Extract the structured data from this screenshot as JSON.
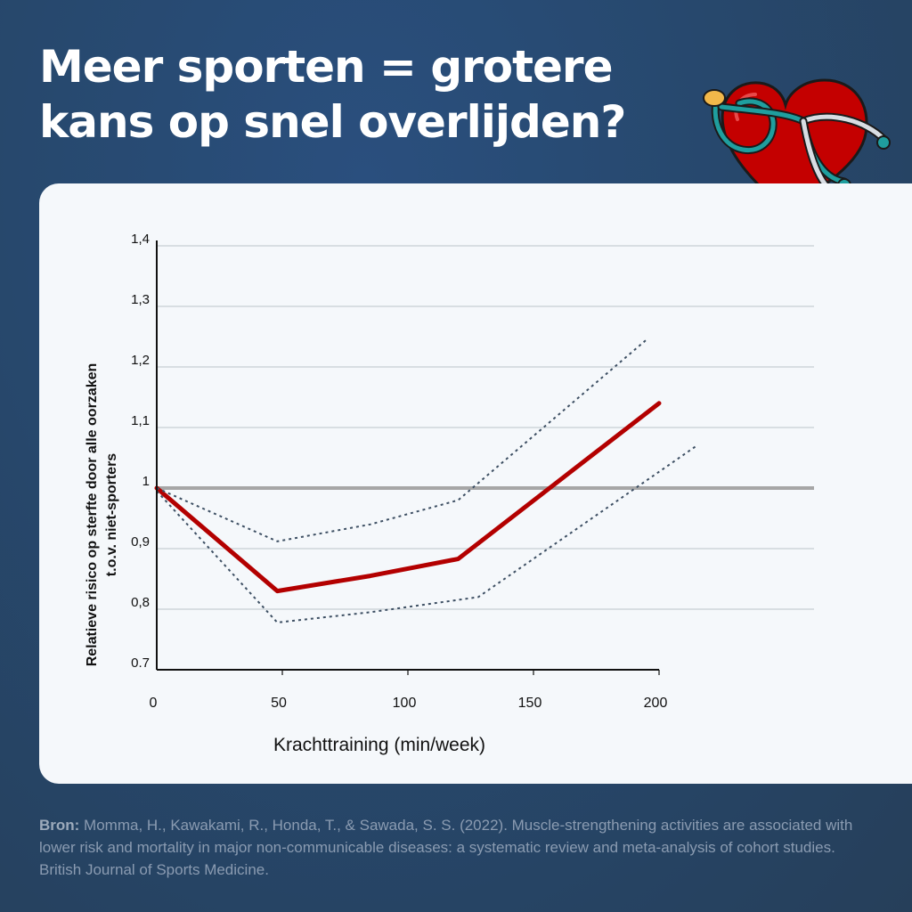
{
  "title_lines": [
    "Meer sporten = grotere",
    "kans op snel overlijden?"
  ],
  "heart_icon": "heart-with-stethoscope",
  "colors": {
    "main_line": "#b30000",
    "ci_line": "#3d4f63",
    "reference_line": "#a6a6a6",
    "grid": "#c6cdd4",
    "card": "#f5f8fb"
  },
  "chart_data": {
    "type": "line",
    "xlabel": "Krachttraining (min/week)",
    "ylabel_lines": [
      "Relatieve risico op sterfte door alle oorzaken",
      "t.o.v. niet-sporters"
    ],
    "x_ticks": [
      {
        "value": 0,
        "label": "0"
      },
      {
        "value": 50,
        "label": "50"
      },
      {
        "value": 100,
        "label": "100"
      },
      {
        "value": 150,
        "label": "150"
      },
      {
        "value": 200,
        "label": "200"
      }
    ],
    "y_ticks": [
      {
        "value": 0.7,
        "label": "0.7"
      },
      {
        "value": 0.8,
        "label": "0,8"
      },
      {
        "value": 0.9,
        "label": "0,9"
      },
      {
        "value": 1.0,
        "label": "1"
      },
      {
        "value": 1.1,
        "label": "1,1"
      },
      {
        "value": 1.2,
        "label": "1,2"
      },
      {
        "value": 1.3,
        "label": "1,3"
      },
      {
        "value": 1.4,
        "label": "1,4"
      }
    ],
    "xlim": [
      0,
      200
    ],
    "ylim": [
      0.7,
      1.4
    ],
    "grid": true,
    "reference_y": 1.0,
    "series": [
      {
        "style": "solid",
        "x": [
          0,
          48,
          85,
          120,
          200
        ],
        "y": [
          1.0,
          0.83,
          0.855,
          0.883,
          1.14
        ]
      },
      {
        "style": "dotted",
        "x": [
          0,
          48,
          85,
          120,
          195
        ],
        "y": [
          1.0,
          0.912,
          0.94,
          0.98,
          1.245
        ]
      },
      {
        "style": "dotted",
        "x": [
          0,
          48,
          85,
          128,
          215
        ],
        "y": [
          0.995,
          0.778,
          0.795,
          0.82,
          1.07
        ]
      }
    ]
  },
  "source": {
    "label": "Bron:",
    "text": " Momma, H., Kawakami, R., Honda, T., & Sawada, S. S. (2022). Muscle-strengthening activities are associated with lower risk and mortality in major non-communicable diseases: a systematic review and meta-analysis of cohort studies. British Journal of Sports Medicine."
  }
}
